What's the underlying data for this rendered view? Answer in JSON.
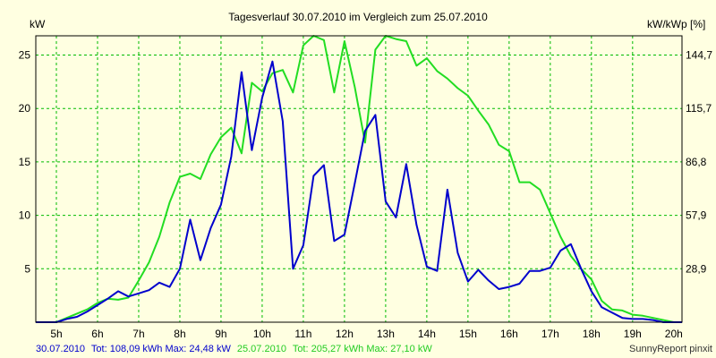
{
  "chart_data": {
    "type": "line",
    "title": "Tagesverlauf 30.07.2010 im Vergleich zum 25.07.2010",
    "y_left_unit": "kW",
    "y_right_unit": "kW/kWp [%]",
    "x_ticks": [
      "5h",
      "6h",
      "7h",
      "8h",
      "9h",
      "10h",
      "11h",
      "12h",
      "13h",
      "14h",
      "15h",
      "16h",
      "17h",
      "18h",
      "19h",
      "20h"
    ],
    "y_left_ticks": [
      "5",
      "10",
      "15",
      "20",
      "25"
    ],
    "y_right_ticks": [
      "28,9",
      "57,9",
      "86,8",
      "115,7",
      "144,7"
    ],
    "xlim": [
      4.5,
      20.2
    ],
    "ylim": [
      0,
      26.8
    ],
    "grid": true,
    "colors": {
      "series_1": "#0000CC",
      "series_2": "#22DD22",
      "grid": "#00BB00",
      "background": "#FFFFE1"
    },
    "series": [
      {
        "name": "30.07.2010",
        "x": [
          4.5,
          4.75,
          5.0,
          5.25,
          5.5,
          5.75,
          6.0,
          6.25,
          6.5,
          6.75,
          7.0,
          7.25,
          7.5,
          7.75,
          8.0,
          8.25,
          8.5,
          8.75,
          9.0,
          9.25,
          9.5,
          9.75,
          10.0,
          10.25,
          10.5,
          10.75,
          11.0,
          11.25,
          11.5,
          11.75,
          12.0,
          12.25,
          12.5,
          12.75,
          13.0,
          13.25,
          13.5,
          13.75,
          14.0,
          14.25,
          14.5,
          14.75,
          15.0,
          15.25,
          15.5,
          15.75,
          16.0,
          16.25,
          16.5,
          16.75,
          17.0,
          17.25,
          17.5,
          17.75,
          18.0,
          18.25,
          18.5,
          18.75,
          19.0,
          19.25,
          19.5,
          19.75,
          20.0,
          20.2
        ],
        "y": [
          0,
          0,
          0,
          0.3,
          0.5,
          1.0,
          1.6,
          2.2,
          2.9,
          2.4,
          2.7,
          3.0,
          3.7,
          3.3,
          5.0,
          9.6,
          5.8,
          8.8,
          11.0,
          15.5,
          23.4,
          16.1,
          21.0,
          24.4,
          18.8,
          5.0,
          7.2,
          13.7,
          14.7,
          7.6,
          8.2,
          13.0,
          17.9,
          19.4,
          11.3,
          9.8,
          14.8,
          9.1,
          5.2,
          4.8,
          12.4,
          6.5,
          3.8,
          4.9,
          3.9,
          3.1,
          3.3,
          3.6,
          4.8,
          4.8,
          5.1,
          6.7,
          7.3,
          5.0,
          2.9,
          1.4,
          0.9,
          0.4,
          0.3,
          0.3,
          0.2,
          0,
          0,
          0
        ]
      },
      {
        "name": "25.07.2010",
        "x": [
          4.5,
          4.75,
          5.0,
          5.25,
          5.5,
          5.75,
          6.0,
          6.25,
          6.5,
          6.75,
          7.0,
          7.25,
          7.5,
          7.75,
          8.0,
          8.25,
          8.5,
          8.75,
          9.0,
          9.25,
          9.5,
          9.75,
          10.0,
          10.25,
          10.5,
          10.75,
          11.0,
          11.25,
          11.5,
          11.75,
          12.0,
          12.25,
          12.5,
          12.75,
          13.0,
          13.25,
          13.5,
          13.75,
          14.0,
          14.25,
          14.5,
          14.75,
          15.0,
          15.25,
          15.5,
          15.75,
          16.0,
          16.25,
          16.5,
          16.75,
          17.0,
          17.25,
          17.5,
          17.75,
          18.0,
          18.25,
          18.5,
          18.75,
          19.0,
          19.25,
          19.5,
          19.75,
          20.0,
          20.2
        ],
        "y": [
          0,
          0,
          0,
          0.4,
          0.8,
          1.2,
          1.8,
          2.2,
          2.1,
          2.3,
          3.9,
          5.6,
          8.0,
          11.2,
          13.6,
          13.9,
          13.4,
          15.7,
          17.3,
          18.2,
          15.8,
          22.4,
          21.6,
          23.3,
          23.6,
          21.5,
          25.9,
          26.8,
          26.4,
          21.5,
          26.3,
          22.0,
          16.8,
          25.5,
          26.8,
          26.5,
          26.3,
          24.0,
          24.7,
          23.5,
          22.8,
          21.9,
          21.2,
          19.8,
          18.5,
          16.6,
          16.0,
          13.1,
          13.1,
          12.4,
          10.2,
          8.0,
          6.2,
          5.0,
          4.0,
          2.0,
          1.2,
          1.1,
          0.7,
          0.6,
          0.4,
          0.2,
          0,
          0
        ]
      }
    ]
  },
  "footer": {
    "series1_date": "30.07.2010",
    "series1_stats": "Tot: 108,09 kWh Max: 24,48 kW",
    "series2_date": "25.07.2010",
    "series2_stats": "Tot: 205,27 kWh Max: 27,10 kW",
    "credit": "SunnyReport pinxit"
  }
}
